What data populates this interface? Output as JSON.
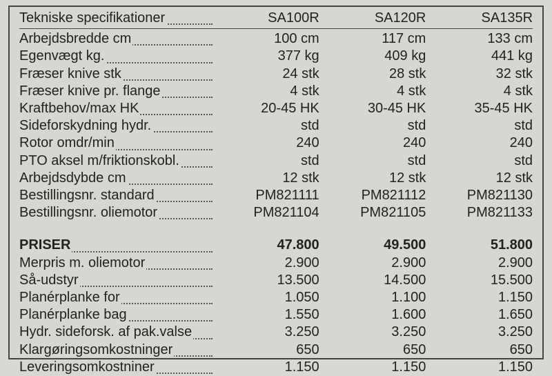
{
  "header": {
    "label": "Tekniske specifikationer",
    "models": [
      "SA100R",
      "SA120R",
      "SA135R"
    ]
  },
  "specs": [
    {
      "label": "Arbejdsbredde cm",
      "v": [
        "100 cm",
        "117 cm",
        "133 cm"
      ]
    },
    {
      "label": "Egenvægt kg.",
      "v": [
        "377 kg",
        "409 kg",
        "441 kg"
      ]
    },
    {
      "label": "Fræser knive stk",
      "v": [
        "24 stk",
        "28 stk",
        "32 stk"
      ]
    },
    {
      "label": "Fræser knive pr. flange",
      "v": [
        "4 stk",
        "4 stk",
        "4 stk"
      ]
    },
    {
      "label": "Kraftbehov/max HK",
      "v": [
        "20-45 HK",
        "30-45 HK",
        "35-45 HK"
      ]
    },
    {
      "label": "Sideforskydning hydr.",
      "v": [
        "std",
        "std",
        "std"
      ]
    },
    {
      "label": "Rotor omdr/min",
      "v": [
        "240",
        "240",
        "240"
      ]
    },
    {
      "label": "PTO aksel m/friktionskobl.",
      "v": [
        "std",
        "std",
        "std"
      ]
    },
    {
      "label": "Arbejdsdybde cm",
      "v": [
        "12 stk",
        "12 stk",
        "12 stk"
      ]
    },
    {
      "label": "Bestillingsnr. standard",
      "v": [
        "PM821111",
        "PM821112",
        "PM821130"
      ]
    },
    {
      "label": "Bestillingsnr. oliemotor",
      "v": [
        "PM821104",
        "PM821105",
        "PM821133"
      ]
    }
  ],
  "prices_header": {
    "label": "PRISER",
    "v": [
      "47.800",
      "49.500",
      "51.800"
    ]
  },
  "prices": [
    {
      "label": "Merpris m. oliemotor",
      "v": [
        "2.900",
        "2.900",
        "2.900"
      ]
    },
    {
      "label": "Så-udstyr",
      "v": [
        "13.500",
        "14.500",
        "15.500"
      ]
    },
    {
      "label": "Planérplanke for",
      "v": [
        "1.050",
        "1.100",
        "1.150"
      ]
    },
    {
      "label": "Planérplanke bag",
      "v": [
        "1.550",
        "1.600",
        "1.650"
      ]
    },
    {
      "label": "Hydr. sideforsk. af pak.valse",
      "v": [
        "3.250",
        "3.250",
        "3.250"
      ]
    },
    {
      "label": "Klargøringsomkostninger",
      "v": [
        "650",
        "650",
        "650"
      ]
    },
    {
      "label": "Leveringsomkostniner",
      "v": [
        "1.150",
        "1.150",
        "1.150"
      ]
    }
  ]
}
